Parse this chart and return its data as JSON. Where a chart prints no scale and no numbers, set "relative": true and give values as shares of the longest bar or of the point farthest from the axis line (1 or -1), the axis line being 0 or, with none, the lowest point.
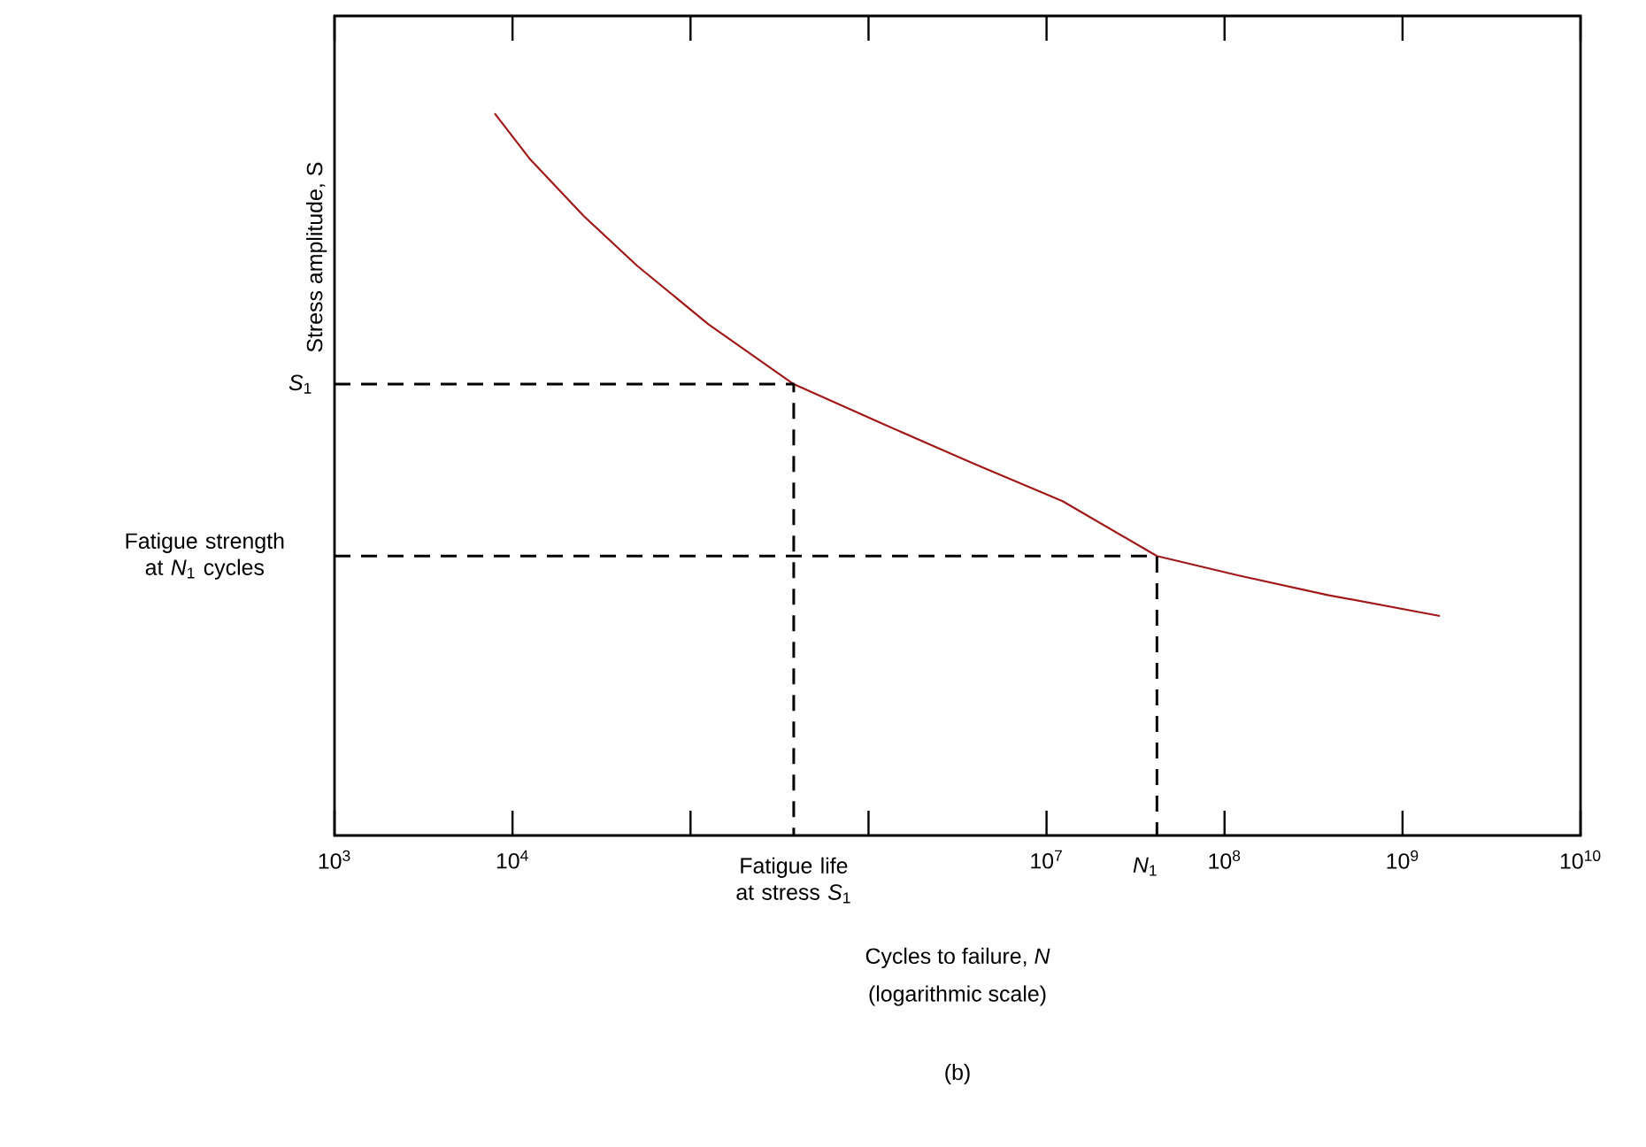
{
  "chart_data": {
    "type": "line",
    "relative": true,
    "log": "x",
    "marker": "none",
    "ylabel": "Stress amplitude, S",
    "xlabel": "Cycles to failure, *N*",
    "xlim": [
      1000,
      10000000000
    ],
    "xticks": [
      {
        "value": 1000,
        "label": "10$^{3}$"
      },
      {
        "value": 10000,
        "label": "10$^{4}$"
      },
      {
        "value": 100000,
        "label": null
      },
      {
        "value": 1000000,
        "label": null
      },
      {
        "value": 10000000,
        "label": "10$^{7}$"
      },
      {
        "value": 100000000,
        "label": "10$^{8}$"
      },
      {
        "value": 1000000000,
        "label": "10$^{9}$"
      },
      {
        "value": 10000000000,
        "label": "10$^{10}$"
      }
    ],
    "series": [
      {
        "color": "#a01818",
        "line_style": "solid",
        "x": [
          7940,
          12600,
          25100,
          50100,
          126000,
          380000,
          1230000,
          3890000,
          12300000,
          41700000,
          120000000,
          380000000,
          1620000000
        ],
        "values": [
          1,
          0.936,
          0.858,
          0.789,
          0.708,
          0.625,
          0.569,
          0.515,
          0.463,
          0.387,
          0.36,
          0.333,
          0.304
        ]
      },
      {
        "color": "#000000",
        "line_style": "dashed",
        "x": [
          1000,
          380000,
          380000
        ],
        "values": [
          0.625,
          0.625,
          0
        ]
      },
      {
        "color": "#000000",
        "line_style": "dashed",
        "x": [
          1000,
          41700000,
          41700000
        ],
        "values": [
          0.387,
          0.387,
          0
        ]
      }
    ],
    "annotations": [
      "*S*$_{1}$",
      "Fatigue strength at *N*$_{1}$ cycles",
      "Fatigue life at stress *S*$_{1}$",
      "*N*$_{1}$",
      "(logarithmic scale)",
      "(b)"
    ]
  }
}
